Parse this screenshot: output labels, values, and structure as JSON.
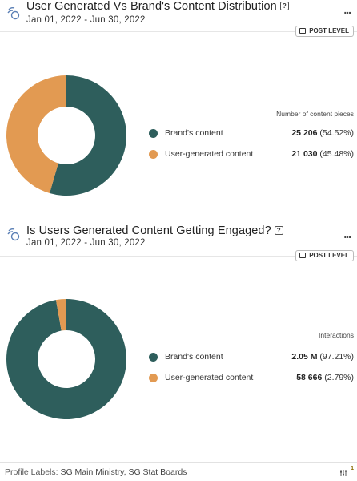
{
  "cards": [
    {
      "title": "User Generated Vs Brand's Content Distribution",
      "help": "?",
      "date_range": "Jan 01, 2022 - Jun 30, 2022",
      "more": "...",
      "badge": "POST LEVEL",
      "metric_label": "Number of content pieces",
      "legend": [
        {
          "label": "Brand's content",
          "value": "25 206",
          "pct": "(54.52%)",
          "color": "#2e5e5c"
        },
        {
          "label": "User-generated content",
          "value": "21 030",
          "pct": "(45.48%)",
          "color": "#e29a52"
        }
      ]
    },
    {
      "title": "Is Users Generated Content Getting Engaged?",
      "help": "?",
      "date_range": "Jan 01, 2022 - Jun 30, 2022",
      "more": "...",
      "badge": "POST LEVEL",
      "metric_label": "Interactions",
      "legend": [
        {
          "label": "Brand's content",
          "value": "2.05 M",
          "pct": "(97.21%)",
          "color": "#2e5e5c"
        },
        {
          "label": "User-generated content",
          "value": "58 666",
          "pct": "(2.79%)",
          "color": "#e29a52"
        }
      ]
    }
  ],
  "footer": {
    "label": "Profile Labels:",
    "value": "SG Main Ministry, SG Stat Boards",
    "badge_count": "1"
  },
  "chart_data": [
    {
      "type": "pie",
      "categories": [
        "Brand's content",
        "User-generated content"
      ],
      "values": [
        54.52,
        45.48
      ],
      "colors": [
        "#2e5e5c",
        "#e29a52"
      ]
    },
    {
      "type": "pie",
      "categories": [
        "Brand's content",
        "User-generated content"
      ],
      "values": [
        97.21,
        2.79
      ],
      "colors": [
        "#2e5e5c",
        "#e29a52"
      ]
    }
  ]
}
